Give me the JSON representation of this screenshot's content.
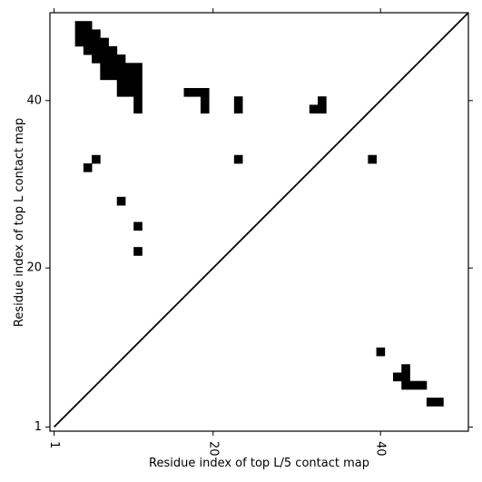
{
  "chart_data": {
    "type": "heatmap",
    "title": "",
    "xlabel": "Residue index of top L/5 contact map",
    "ylabel": "Residue index of top L contact map",
    "xlim": [
      0.5,
      50.5
    ],
    "ylim": [
      0.5,
      50.5
    ],
    "x_ticks": [
      1,
      20,
      40
    ],
    "y_ticks": [
      1,
      20,
      40
    ],
    "x_tick_labels": [
      "1",
      "20",
      "40"
    ],
    "y_tick_labels": [
      "1",
      "20",
      "40"
    ],
    "x_tick_rotation": -90,
    "grid": false,
    "legend": "none",
    "diagonal_line": true,
    "cell_color": "#000000",
    "upper_contacts": [
      [
        4,
        49
      ],
      [
        5,
        49
      ],
      [
        4,
        48
      ],
      [
        5,
        48
      ],
      [
        6,
        48
      ],
      [
        4,
        47
      ],
      [
        5,
        47
      ],
      [
        6,
        47
      ],
      [
        7,
        47
      ],
      [
        5,
        46
      ],
      [
        6,
        46
      ],
      [
        7,
        46
      ],
      [
        8,
        46
      ],
      [
        6,
        45
      ],
      [
        7,
        45
      ],
      [
        8,
        45
      ],
      [
        9,
        45
      ],
      [
        7,
        44
      ],
      [
        8,
        44
      ],
      [
        9,
        44
      ],
      [
        10,
        44
      ],
      [
        11,
        44
      ],
      [
        7,
        43
      ],
      [
        8,
        43
      ],
      [
        9,
        43
      ],
      [
        10,
        43
      ],
      [
        11,
        43
      ],
      [
        9,
        42
      ],
      [
        10,
        42
      ],
      [
        11,
        42
      ],
      [
        9,
        41
      ],
      [
        10,
        41
      ],
      [
        11,
        41
      ],
      [
        17,
        41
      ],
      [
        18,
        41
      ],
      [
        19,
        41
      ],
      [
        11,
        40
      ],
      [
        19,
        40
      ],
      [
        23,
        40
      ],
      [
        33,
        40
      ],
      [
        11,
        39
      ],
      [
        19,
        39
      ],
      [
        23,
        39
      ],
      [
        32,
        39
      ],
      [
        33,
        39
      ],
      [
        6,
        33
      ],
      [
        23,
        33
      ],
      [
        39,
        33
      ],
      [
        5,
        32
      ],
      [
        9,
        28
      ],
      [
        11,
        25
      ],
      [
        11,
        22
      ]
    ],
    "lower_contacts": [
      [
        40,
        10
      ],
      [
        43,
        8
      ],
      [
        42,
        7
      ],
      [
        43,
        7
      ],
      [
        43,
        6
      ],
      [
        44,
        6
      ],
      [
        45,
        6
      ],
      [
        46,
        4
      ],
      [
        47,
        4
      ]
    ]
  }
}
